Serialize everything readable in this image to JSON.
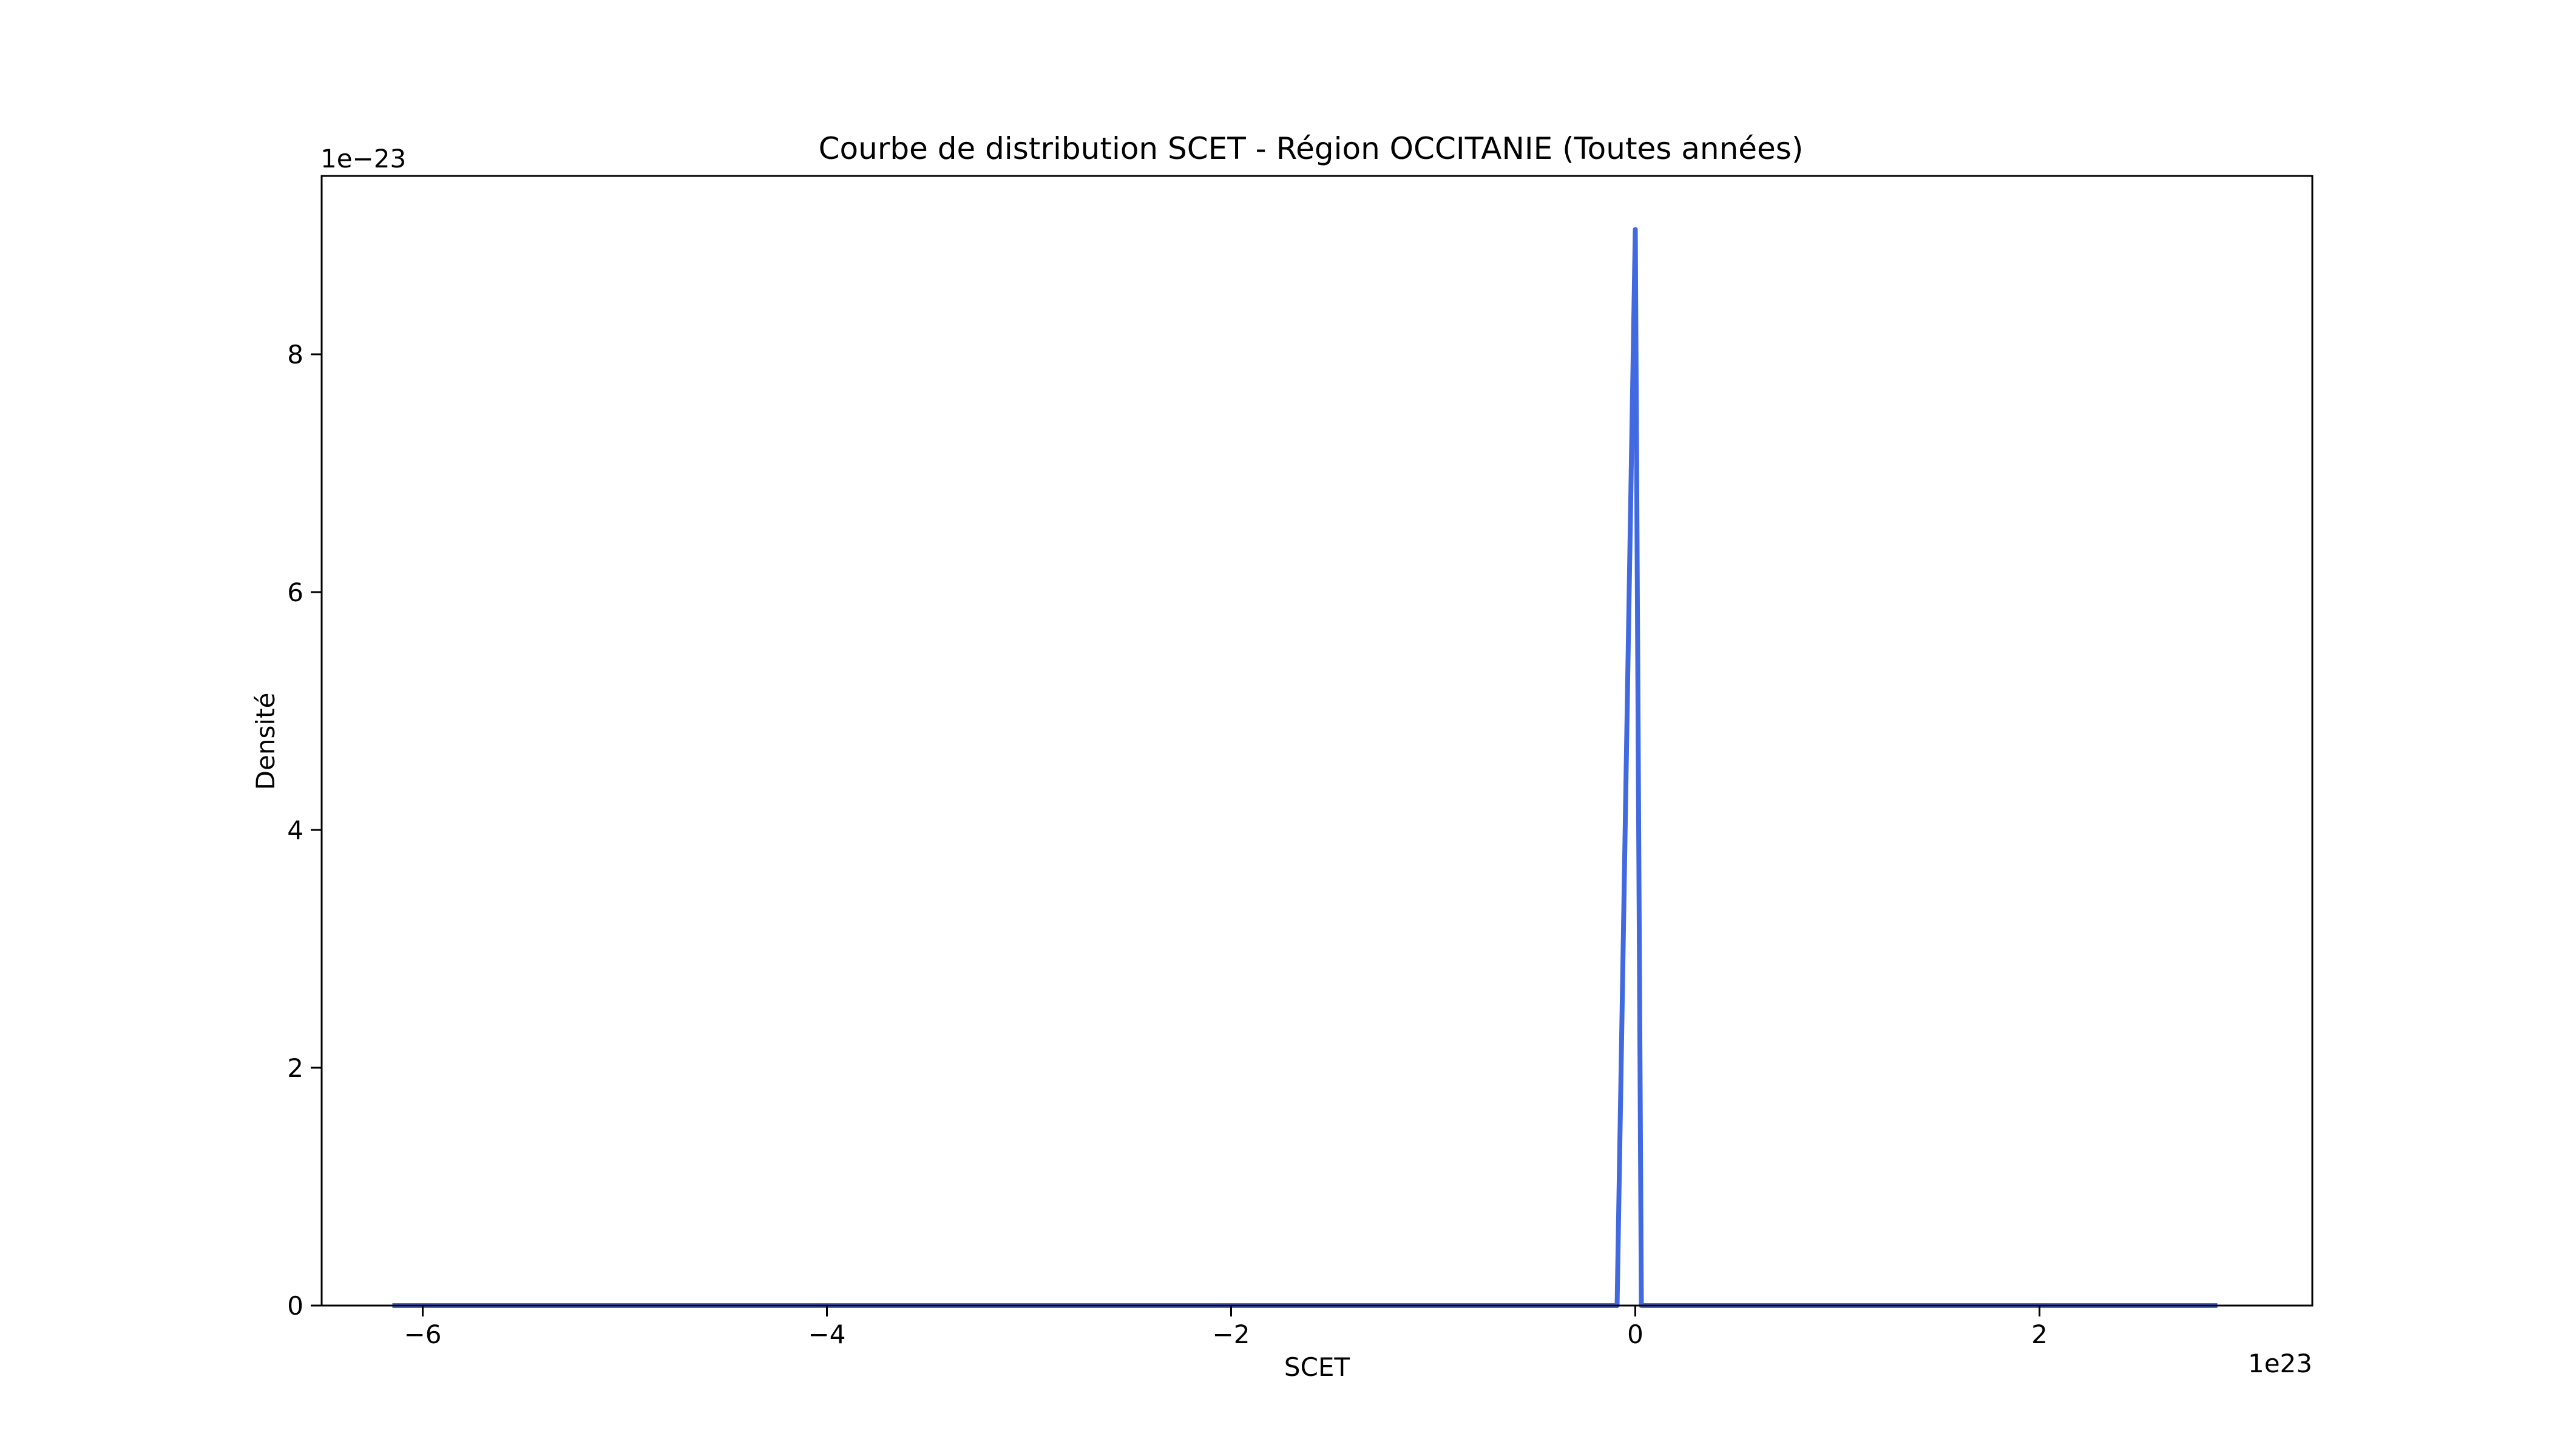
{
  "chart_data": {
    "type": "line",
    "title": "Courbe de distribution SCET - Région OCCITANIE (Toutes années)",
    "xlabel": "SCET",
    "ylabel": "Densité",
    "x_offset_label": "1e23",
    "y_offset_label": "1e−23",
    "x_scale_factor": 1e+23,
    "y_scale_factor": 1e-23,
    "xlim": [
      -6.5,
      3.35
    ],
    "ylim": [
      0,
      9.5
    ],
    "x_ticks": [
      -6,
      -4,
      -2,
      0,
      2
    ],
    "x_tick_labels": [
      "−6",
      "−4",
      "−2",
      "0",
      "2"
    ],
    "y_ticks": [
      0,
      2,
      4,
      6,
      8
    ],
    "y_tick_labels": [
      "0",
      "2",
      "4",
      "6",
      "8"
    ],
    "grid": false,
    "legend": "none",
    "line_color": "#4169e1",
    "series": [
      {
        "x": [
          -6.15,
          -4.0,
          -2.0,
          -1.0,
          -0.09,
          0.0,
          0.03,
          1.0,
          2.0,
          2.88
        ],
        "y": [
          0.0,
          0.0,
          0.0,
          0.0,
          0.0,
          9.05,
          0.0,
          0.0,
          0.0,
          0.0
        ]
      }
    ]
  }
}
